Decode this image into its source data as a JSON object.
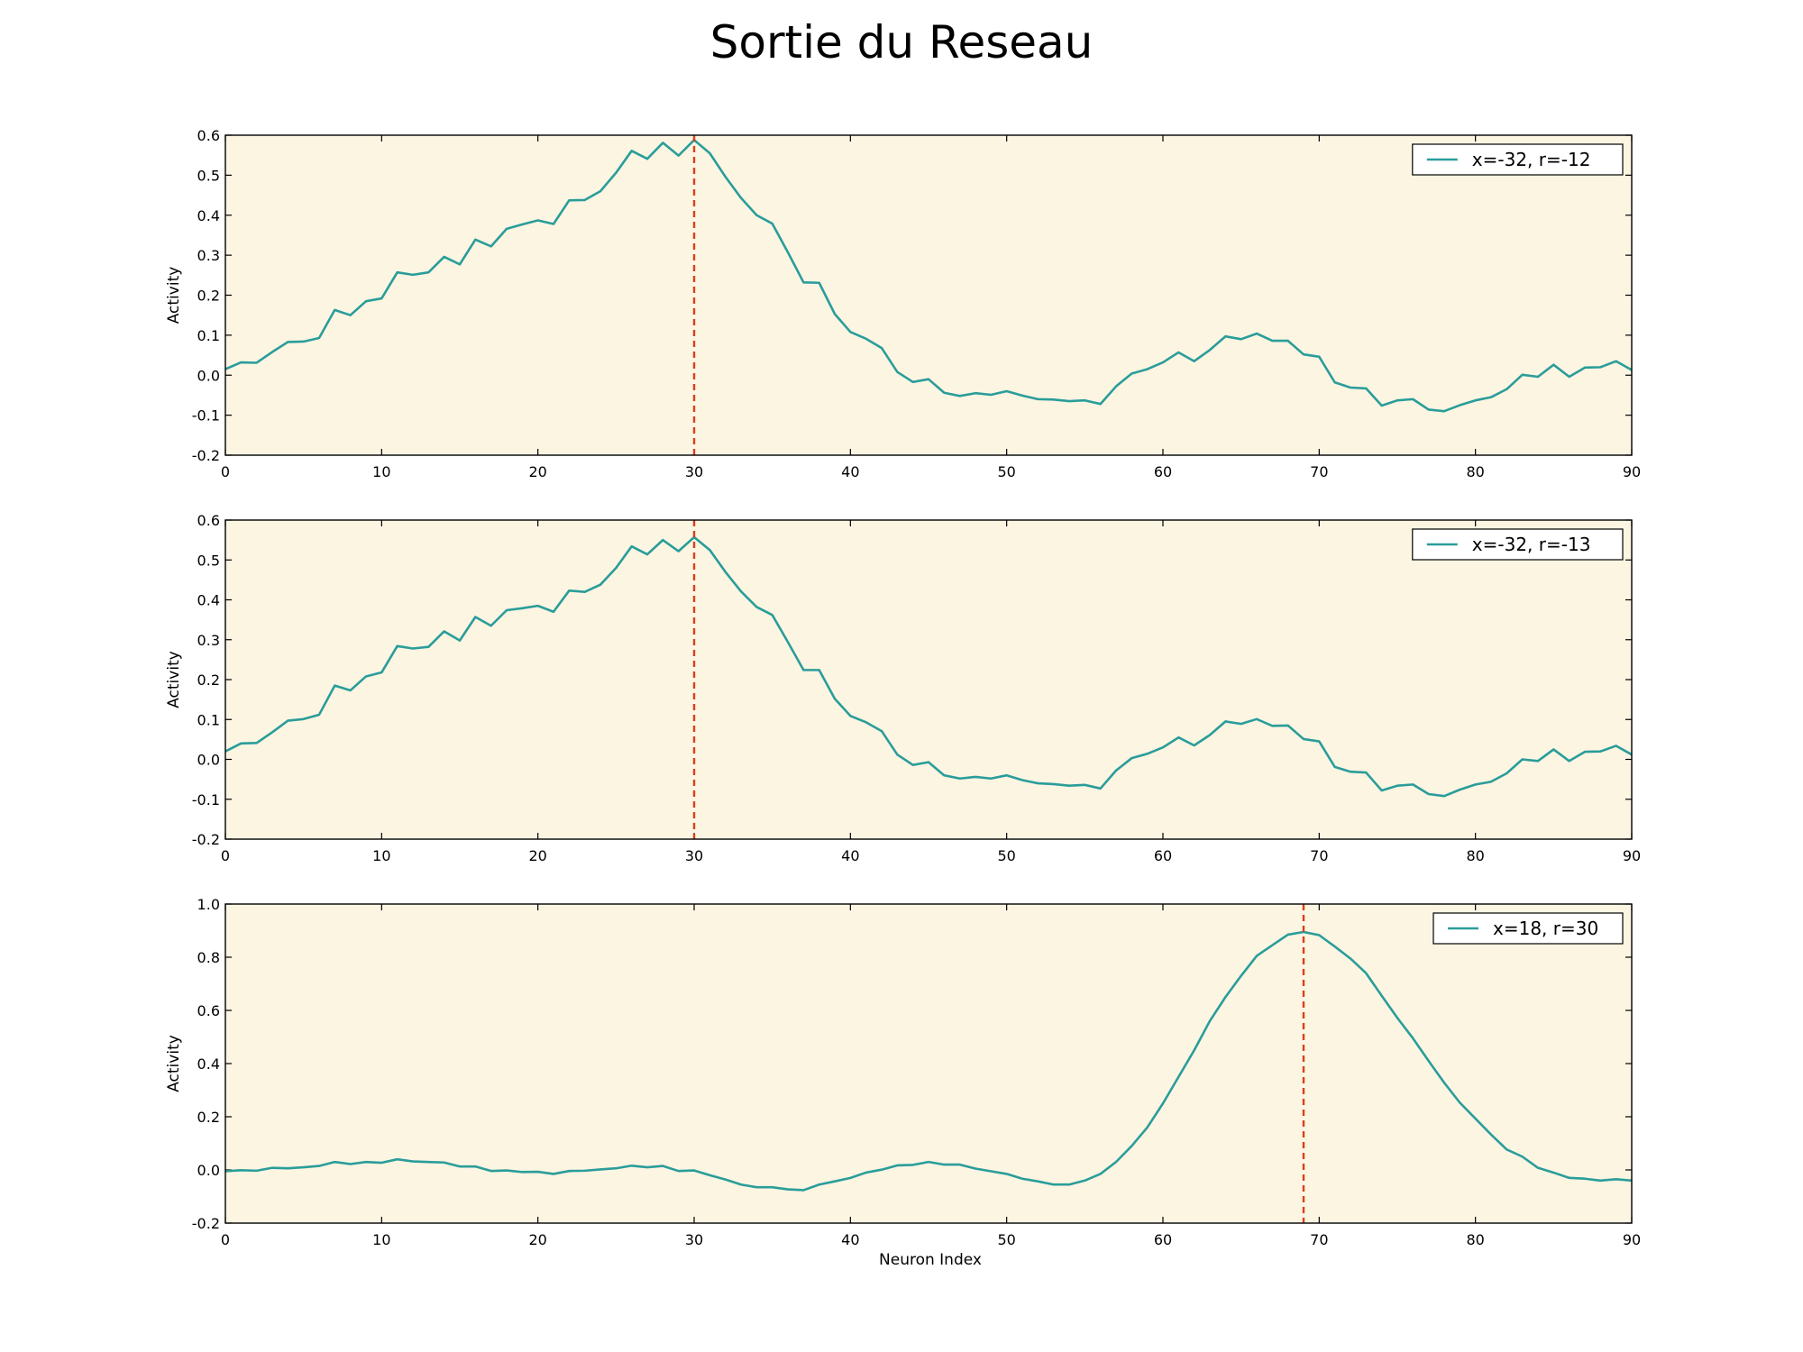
{
  "figure": {
    "title": "Sortie du Reseau"
  },
  "style": {
    "line_color": "#2a9d9a",
    "marker_color": "#d9401a",
    "plot_bg": "#fcf5e2"
  },
  "chart_data": [
    {
      "type": "line",
      "title": "",
      "xlabel": "",
      "ylabel": "Activity",
      "xlim": [
        0,
        90
      ],
      "ylim": [
        -0.2,
        0.6
      ],
      "xticks": [
        0,
        10,
        20,
        30,
        40,
        50,
        60,
        70,
        80,
        90
      ],
      "yticks": [
        -0.2,
        -0.1,
        0.0,
        0.1,
        0.2,
        0.3,
        0.4,
        0.5,
        0.6
      ],
      "ytick_decimals": 1,
      "legend": "top-right",
      "marker_x": 30,
      "series": [
        {
          "name": "x=-32, r=-12",
          "values": [
            0.015,
            0.032,
            0.031,
            0.058,
            0.083,
            0.084,
            0.093,
            0.163,
            0.15,
            0.185,
            0.192,
            0.257,
            0.251,
            0.257,
            0.296,
            0.277,
            0.339,
            0.322,
            0.366,
            0.377,
            0.387,
            0.378,
            0.437,
            0.438,
            0.46,
            0.506,
            0.561,
            0.541,
            0.581,
            0.549,
            0.588,
            0.555,
            0.496,
            0.443,
            0.4,
            0.379,
            0.307,
            0.232,
            0.231,
            0.153,
            0.108,
            0.091,
            0.068,
            0.008,
            -0.017,
            -0.01,
            -0.044,
            -0.052,
            -0.045,
            -0.049,
            -0.04,
            -0.051,
            -0.06,
            -0.061,
            -0.065,
            -0.063,
            -0.072,
            -0.028,
            0.004,
            0.015,
            0.032,
            0.057,
            0.035,
            0.063,
            0.097,
            0.09,
            0.104,
            0.086,
            0.086,
            0.052,
            0.046,
            -0.018,
            -0.031,
            -0.033,
            -0.076,
            -0.063,
            -0.06,
            -0.086,
            -0.09,
            -0.075,
            -0.063,
            -0.055,
            -0.035,
            0.001,
            -0.004,
            0.026,
            -0.004,
            0.019,
            0.02,
            0.035,
            0.013
          ]
        }
      ]
    },
    {
      "type": "line",
      "title": "",
      "xlabel": "",
      "ylabel": "Activity",
      "xlim": [
        0,
        90
      ],
      "ylim": [
        -0.2,
        0.6
      ],
      "xticks": [
        0,
        10,
        20,
        30,
        40,
        50,
        60,
        70,
        80,
        90
      ],
      "yticks": [
        -0.2,
        -0.1,
        0.0,
        0.1,
        0.2,
        0.3,
        0.4,
        0.5,
        0.6
      ],
      "ytick_decimals": 1,
      "legend": "top-right",
      "marker_x": 30,
      "series": [
        {
          "name": "x=-32, r=-13",
          "values": [
            0.02,
            0.04,
            0.041,
            0.068,
            0.097,
            0.101,
            0.112,
            0.185,
            0.173,
            0.208,
            0.218,
            0.284,
            0.278,
            0.282,
            0.321,
            0.298,
            0.357,
            0.335,
            0.374,
            0.379,
            0.385,
            0.37,
            0.423,
            0.42,
            0.438,
            0.48,
            0.534,
            0.514,
            0.55,
            0.522,
            0.557,
            0.525,
            0.47,
            0.421,
            0.382,
            0.362,
            0.294,
            0.224,
            0.224,
            0.152,
            0.109,
            0.093,
            0.071,
            0.012,
            -0.014,
            -0.007,
            -0.04,
            -0.048,
            -0.044,
            -0.048,
            -0.04,
            -0.052,
            -0.06,
            -0.062,
            -0.066,
            -0.064,
            -0.073,
            -0.028,
            0.003,
            0.014,
            0.03,
            0.055,
            0.035,
            0.061,
            0.095,
            0.089,
            0.101,
            0.084,
            0.085,
            0.051,
            0.045,
            -0.019,
            -0.031,
            -0.033,
            -0.078,
            -0.066,
            -0.063,
            -0.087,
            -0.092,
            -0.076,
            -0.063,
            -0.056,
            -0.035,
            0.0,
            -0.004,
            0.025,
            -0.004,
            0.019,
            0.02,
            0.034,
            0.012
          ]
        }
      ]
    },
    {
      "type": "line",
      "title": "",
      "xlabel": "Neuron Index",
      "ylabel": "Activity",
      "xlim": [
        0,
        90
      ],
      "ylim": [
        -0.2,
        1.0
      ],
      "xticks": [
        0,
        10,
        20,
        30,
        40,
        50,
        60,
        70,
        80,
        90
      ],
      "yticks": [
        -0.2,
        0.0,
        0.2,
        0.4,
        0.6,
        0.8,
        1.0
      ],
      "ytick_decimals": 1,
      "legend": "top-right",
      "marker_x": 69,
      "series": [
        {
          "name": "x=18, r=30",
          "values": [
            -0.005,
            -0.001,
            -0.003,
            0.008,
            0.006,
            0.01,
            0.015,
            0.03,
            0.022,
            0.03,
            0.027,
            0.04,
            0.032,
            0.03,
            0.028,
            0.013,
            0.013,
            -0.004,
            -0.002,
            -0.008,
            -0.007,
            -0.015,
            -0.004,
            -0.003,
            0.002,
            0.006,
            0.016,
            0.01,
            0.015,
            -0.004,
            -0.002,
            -0.02,
            -0.036,
            -0.055,
            -0.065,
            -0.065,
            -0.073,
            -0.076,
            -0.055,
            -0.043,
            -0.03,
            -0.01,
            0.001,
            0.017,
            0.019,
            0.03,
            0.02,
            0.02,
            0.005,
            -0.005,
            -0.015,
            -0.033,
            -0.043,
            -0.055,
            -0.055,
            -0.04,
            -0.015,
            0.03,
            0.09,
            0.16,
            0.25,
            0.35,
            0.45,
            0.56,
            0.65,
            0.73,
            0.805,
            0.845,
            0.885,
            0.895,
            0.883,
            0.84,
            0.795,
            0.74,
            0.655,
            0.572,
            0.495,
            0.41,
            0.328,
            0.253,
            0.193,
            0.133,
            0.077,
            0.05,
            0.008,
            -0.01,
            -0.03,
            -0.033,
            -0.04,
            -0.035,
            -0.04
          ]
        }
      ]
    }
  ]
}
